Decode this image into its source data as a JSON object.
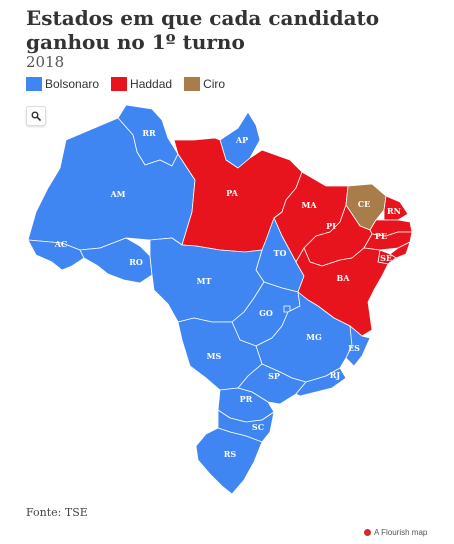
{
  "header": {
    "title": "Estados em que cada candidato ganhou no 1º turno",
    "subtitle": "2018"
  },
  "legend": [
    {
      "label": "Bolsonaro",
      "color": "#3f86f2"
    },
    {
      "label": "Haddad",
      "color": "#e8141d"
    },
    {
      "label": "Ciro",
      "color": "#a87d4a"
    }
  ],
  "controls": {
    "search_icon": "search-icon"
  },
  "map": {
    "states": [
      {
        "code": "RR",
        "winner": "Bolsonaro",
        "color": "#3f86f2"
      },
      {
        "code": "AP",
        "winner": "Bolsonaro",
        "color": "#3f86f2"
      },
      {
        "code": "AM",
        "winner": "Bolsonaro",
        "color": "#3f86f2"
      },
      {
        "code": "PA",
        "winner": "Haddad",
        "color": "#e8141d"
      },
      {
        "code": "MA",
        "winner": "Haddad",
        "color": "#e8141d"
      },
      {
        "code": "CE",
        "winner": "Ciro",
        "color": "#a87d4a"
      },
      {
        "code": "RN",
        "winner": "Haddad",
        "color": "#e8141d"
      },
      {
        "code": "PI",
        "winner": "Haddad",
        "color": "#e8141d"
      },
      {
        "code": "PE",
        "winner": "Haddad",
        "color": "#e8141d"
      },
      {
        "code": "SE",
        "winner": "Haddad",
        "color": "#e8141d"
      },
      {
        "code": "AC",
        "winner": "Bolsonaro",
        "color": "#3f86f2"
      },
      {
        "code": "RO",
        "winner": "Bolsonaro",
        "color": "#3f86f2"
      },
      {
        "code": "TO",
        "winner": "Bolsonaro",
        "color": "#3f86f2"
      },
      {
        "code": "BA",
        "winner": "Haddad",
        "color": "#e8141d"
      },
      {
        "code": "MT",
        "winner": "Bolsonaro",
        "color": "#3f86f2"
      },
      {
        "code": "GO",
        "winner": "Bolsonaro",
        "color": "#3f86f2"
      },
      {
        "code": "MG",
        "winner": "Bolsonaro",
        "color": "#3f86f2"
      },
      {
        "code": "ES",
        "winner": "Bolsonaro",
        "color": "#3f86f2"
      },
      {
        "code": "MS",
        "winner": "Bolsonaro",
        "color": "#3f86f2"
      },
      {
        "code": "SP",
        "winner": "Bolsonaro",
        "color": "#3f86f2"
      },
      {
        "code": "RJ",
        "winner": "Bolsonaro",
        "color": "#3f86f2"
      },
      {
        "code": "PR",
        "winner": "Bolsonaro",
        "color": "#3f86f2"
      },
      {
        "code": "SC",
        "winner": "Bolsonaro",
        "color": "#3f86f2"
      },
      {
        "code": "RS",
        "winner": "Bolsonaro",
        "color": "#3f86f2"
      }
    ],
    "unlabeled_states": [
      {
        "name": "paraiba",
        "color": "#e8141d"
      },
      {
        "name": "alagoas",
        "color": "#e8141d"
      },
      {
        "name": "distrito-federal",
        "color": "#3f86f2"
      }
    ]
  },
  "footer": {
    "source": "Fonte: TSE",
    "credit": "A Flourish map"
  }
}
